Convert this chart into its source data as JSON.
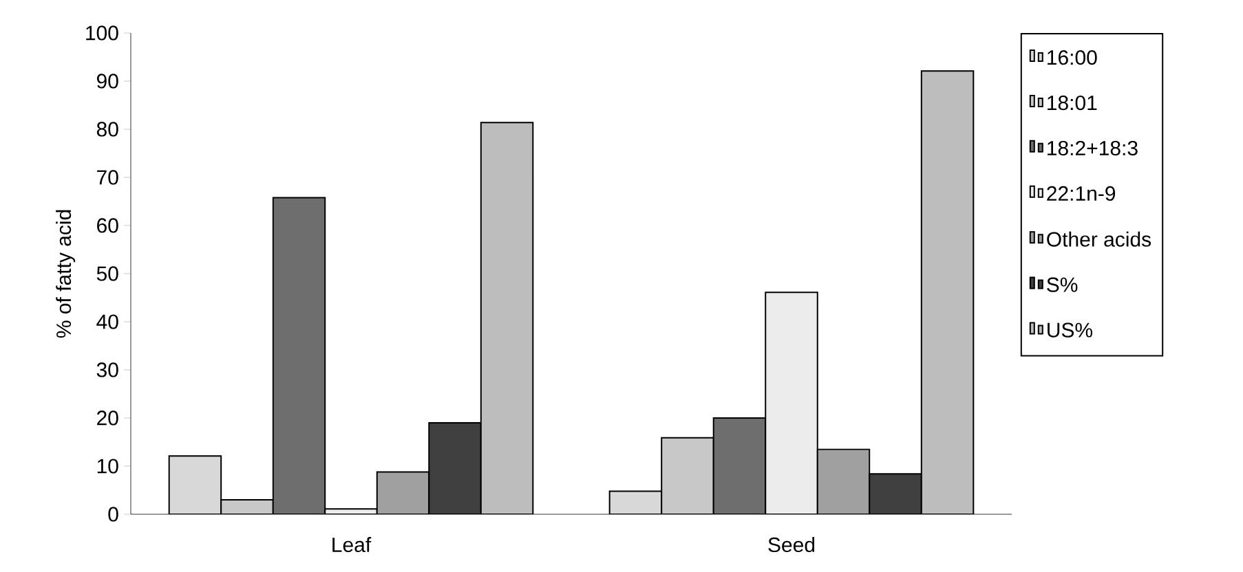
{
  "chart_data": {
    "type": "bar",
    "ylabel": "% of fatty acid",
    "categories": [
      "Leaf",
      "Seed"
    ],
    "series": [
      {
        "name": "16:00",
        "color": "#d8d8d8",
        "values": [
          12.1,
          4.8
        ]
      },
      {
        "name": "18:01",
        "color": "#c8c8c8",
        "values": [
          3.0,
          15.9
        ]
      },
      {
        "name": "18:2+18:3",
        "color": "#6e6e6e",
        "values": [
          65.8,
          20.0
        ]
      },
      {
        "name": "22:1n-9",
        "color": "#ececec",
        "values": [
          1.1,
          46.1
        ]
      },
      {
        "name": "Other acids",
        "color": "#a0a0a0",
        "values": [
          8.8,
          13.5
        ]
      },
      {
        "name": "S%",
        "color": "#404040",
        "values": [
          19.0,
          8.4
        ]
      },
      {
        "name": "US%",
        "color": "#bdbdbd",
        "values": [
          81.4,
          92.1
        ]
      }
    ],
    "ylim": [
      0,
      100
    ],
    "yticks": [
      0,
      10,
      20,
      30,
      40,
      50,
      60,
      70,
      80,
      90,
      100
    ],
    "grid": false,
    "legend": "right"
  }
}
